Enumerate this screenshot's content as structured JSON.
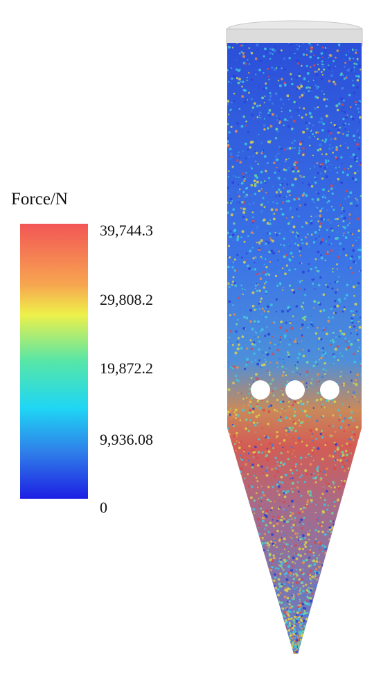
{
  "legend": {
    "title": "Force/N",
    "ticks": [
      "39,744.3",
      "29,808.2",
      "19,872.2",
      "9,936.08",
      "0"
    ],
    "colors": [
      "#f25656",
      "#f7c050",
      "#eef04a",
      "#56e6a8",
      "#1fd6f4",
      "#2f7fe9",
      "#1d1fe3"
    ]
  },
  "simulation": {
    "subject": "silo-with-particles",
    "holes": 3,
    "particle_palette": [
      "#2b3fd6",
      "#3c7fe8",
      "#40c8e0",
      "#6ed9a0",
      "#d9d24e",
      "#e8904a",
      "#d9464a"
    ]
  }
}
